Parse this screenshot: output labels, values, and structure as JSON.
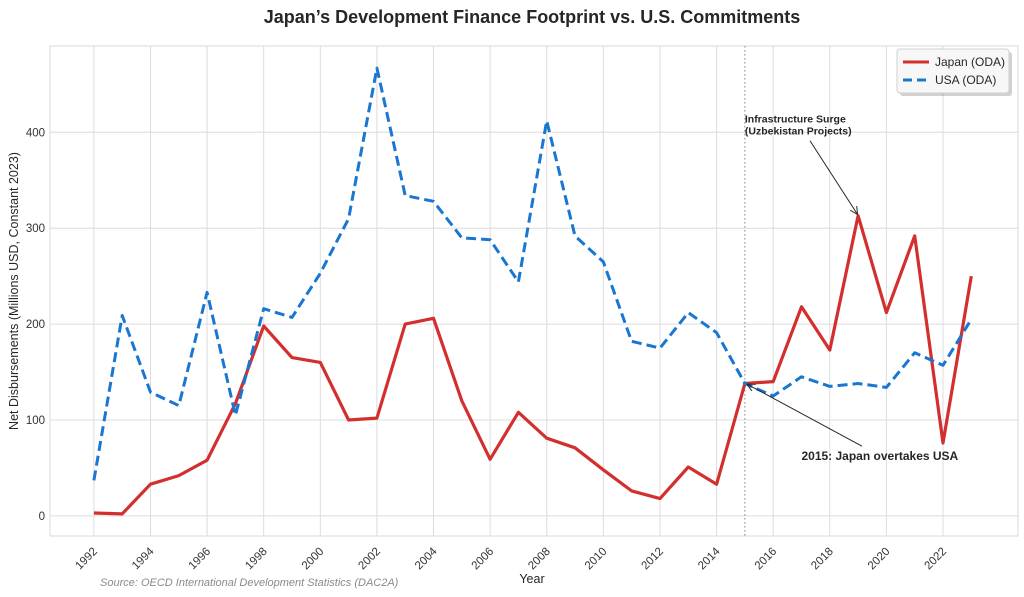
{
  "chart_data": {
    "type": "line",
    "title": "Japan’s Development Finance Footprint vs. U.S. Commitments",
    "xlabel": "Year",
    "ylabel": "Net Disbursements (Millions USD, Constant 2023)",
    "source_note": "Source: OECD International Development Statistics (DAC2A)",
    "x": [
      1992,
      1993,
      1994,
      1995,
      1996,
      1997,
      1998,
      1999,
      2000,
      2001,
      2002,
      2003,
      2004,
      2005,
      2006,
      2007,
      2008,
      2009,
      2010,
      2011,
      2012,
      2013,
      2014,
      2015,
      2016,
      2017,
      2018,
      2019,
      2020,
      2021,
      2022,
      2023
    ],
    "series": [
      {
        "name": "Japan (ODA)",
        "color": "#d32f2f",
        "style": "solid",
        "values": [
          3,
          2,
          33,
          42,
          58,
          117,
          198,
          165,
          160,
          100,
          102,
          200,
          206,
          120,
          59,
          108,
          81,
          71,
          48,
          26,
          18,
          51,
          33,
          138,
          140,
          218,
          173,
          313,
          212,
          292,
          76,
          250
        ]
      },
      {
        "name": "USA (ODA)",
        "color": "#1976d2",
        "style": "dashed",
        "values": [
          37,
          209,
          129,
          115,
          233,
          105,
          216,
          207,
          253,
          310,
          467,
          334,
          328,
          290,
          288,
          244,
          412,
          292,
          265,
          182,
          175,
          212,
          191,
          138,
          125,
          145,
          135,
          138,
          134,
          170,
          157,
          205
        ]
      }
    ],
    "xticks": [
      1992,
      1994,
      1996,
      1998,
      2000,
      2002,
      2004,
      2006,
      2008,
      2010,
      2012,
      2014,
      2016,
      2018,
      2020,
      2022
    ],
    "yticks": [
      0,
      100,
      200,
      300,
      400
    ],
    "xlim": [
      1990.45,
      2024.65
    ],
    "ylim": [
      -21,
      490
    ],
    "grid": true,
    "legend_position": "top-right",
    "vline": {
      "x": 2015,
      "style": "dotted",
      "color": "#999999"
    },
    "annotations": [
      {
        "text_lines": [
          "Infrastructure Surge",
          "(Uzbekistan Projects)"
        ],
        "target_x": 2019,
        "target_y": 313,
        "text_x": 2015,
        "text_y": 410
      },
      {
        "text_lines": [
          "2015: Japan overtakes USA"
        ],
        "target_x": 2015,
        "target_y": 138,
        "text_x": 2017,
        "text_y": 58
      }
    ]
  }
}
